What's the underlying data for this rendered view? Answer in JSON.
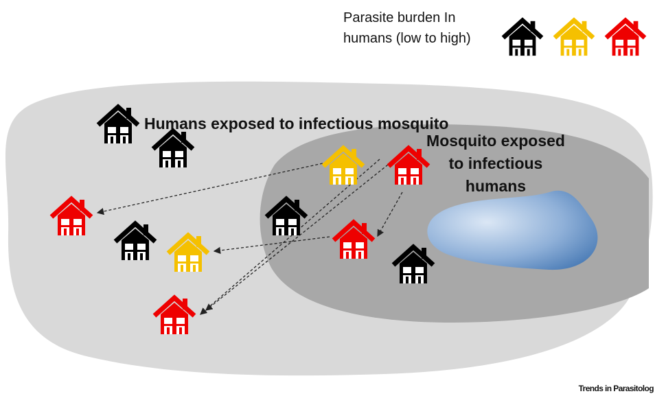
{
  "legend": {
    "title_lines": [
      "Parasite burden In",
      "humans (low to high)"
    ]
  },
  "regions": [
    {
      "label_lines": [
        "Humans exposed to infectious mosquito"
      ]
    },
    {
      "label_lines": [
        "Mosquito exposed",
        "to infectious",
        "humans"
      ]
    }
  ],
  "footer": "Trends in Parasitolog"
}
